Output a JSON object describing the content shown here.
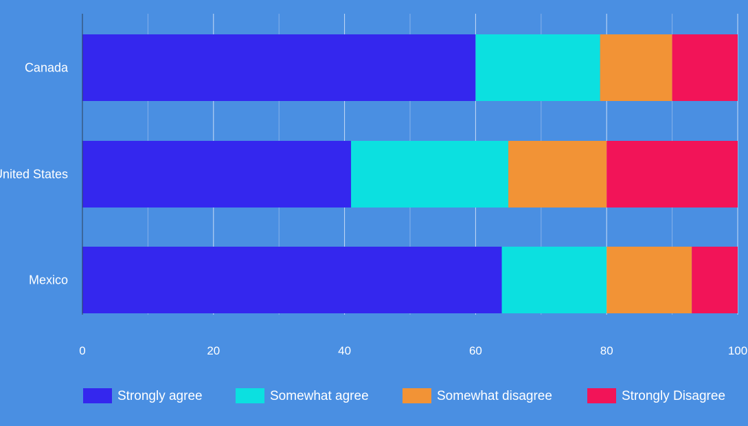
{
  "chart_data": {
    "type": "bar",
    "orientation": "horizontal",
    "stacked": true,
    "categories": [
      "Canada",
      "United States",
      "Mexico"
    ],
    "series": [
      {
        "name": "Strongly agree",
        "color": "#3427ee",
        "values": [
          60,
          41,
          64
        ]
      },
      {
        "name": "Somewhat agree",
        "color": "#0ce0e0",
        "values": [
          19,
          24,
          16
        ]
      },
      {
        "name": "Somewhat disagree",
        "color": "#f29336",
        "values": [
          11,
          15,
          13
        ]
      },
      {
        "name": "Strongly Disagree",
        "color": "#f21458",
        "values": [
          10,
          20,
          7
        ]
      }
    ],
    "xlim": [
      0,
      100
    ],
    "xticks": [
      0,
      20,
      40,
      60,
      80,
      100
    ],
    "grid": true,
    "legend_position": "bottom",
    "background": "#4a8fe2"
  }
}
